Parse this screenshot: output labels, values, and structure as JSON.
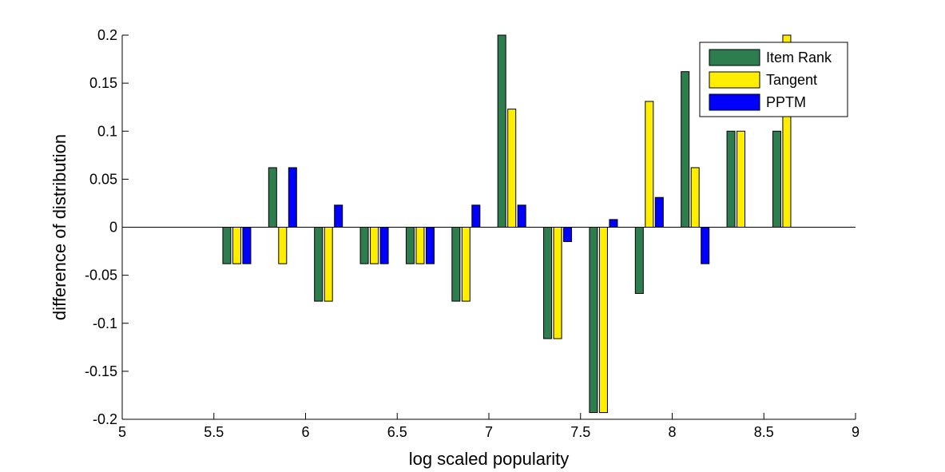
{
  "chart_data": {
    "type": "bar",
    "xlabel": "log scaled popularity",
    "ylabel": "difference of distribution",
    "xlim": [
      5,
      9
    ],
    "ylim": [
      -0.2,
      0.2
    ],
    "xticks": [
      "5",
      "5.5",
      "6",
      "6.5",
      "7",
      "7.5",
      "8",
      "8.5",
      "9"
    ],
    "yticks": [
      "-0.2",
      "-0.15",
      "-0.1",
      "-0.05",
      "0",
      "0.05",
      "0.1",
      "0.15",
      "0.2"
    ],
    "grid": false,
    "legend_position": "top-right",
    "x": [
      5.625,
      5.875,
      6.125,
      6.375,
      6.625,
      6.875,
      7.125,
      7.375,
      7.625,
      7.875,
      8.125,
      8.375,
      8.625
    ],
    "series": [
      {
        "name": "Item Rank",
        "color": "#2e7d4f",
        "values": [
          -0.038,
          0.062,
          -0.077,
          -0.038,
          -0.038,
          -0.077,
          0.2,
          -0.116,
          -0.193,
          -0.069,
          0.162,
          0.1,
          0.1
        ]
      },
      {
        "name": "Tangent",
        "color": "#ffee00",
        "values": [
          -0.038,
          -0.038,
          -0.077,
          -0.038,
          -0.038,
          -0.077,
          0.123,
          -0.116,
          -0.193,
          0.131,
          0.062,
          0.1,
          0.2
        ]
      },
      {
        "name": "PPTM",
        "color": "#0000ff",
        "values": [
          -0.038,
          0.062,
          0.023,
          -0.038,
          -0.038,
          0.023,
          0.023,
          -0.015,
          0.008,
          0.031,
          -0.038,
          0,
          0
        ]
      }
    ]
  }
}
